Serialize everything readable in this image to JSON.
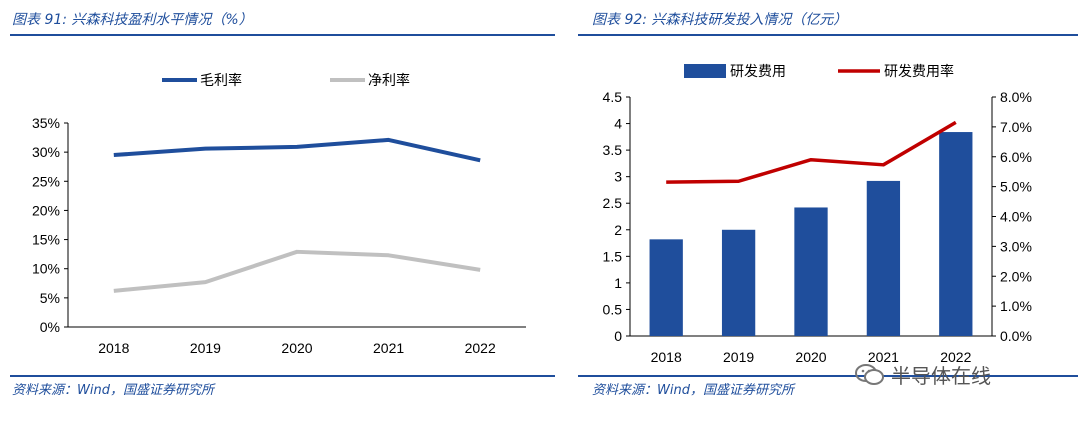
{
  "left": {
    "caption": "图表 91: 兴森科技盈利水平情况（%）",
    "source": "资料来源：Wind，国盛证券研究所"
  },
  "right": {
    "caption": "图表 92: 兴森科技研发投入情况（亿元）",
    "source": "资料来源：Wind，国盛证券研究所"
  },
  "watermark": "半导体在线",
  "colors": {
    "accent": "#1f4e9c",
    "gross": "#1f4e9c",
    "net": "#c0c0c0",
    "bar": "#1f4e9c",
    "ratio": "#c00000"
  },
  "chart_data": [
    {
      "type": "line",
      "title": "兴森科技盈利水平情况（%）",
      "categories": [
        "2018",
        "2019",
        "2020",
        "2021",
        "2022"
      ],
      "y_ticks": [
        "0%",
        "5%",
        "10%",
        "15%",
        "20%",
        "25%",
        "30%",
        "35%"
      ],
      "ylim": [
        0,
        35
      ],
      "series": [
        {
          "name": "毛利率",
          "values": [
            29.5,
            30.6,
            30.9,
            32.1,
            28.6
          ]
        },
        {
          "name": "净利率",
          "values": [
            6.2,
            7.7,
            12.9,
            12.3,
            9.8
          ]
        }
      ],
      "legend": "top"
    },
    {
      "type": "bar",
      "title": "兴森科技研发投入情况（亿元）",
      "categories": [
        "2018",
        "2019",
        "2020",
        "2021",
        "2022"
      ],
      "y_ticks": [
        "0",
        "0.5",
        "1",
        "1.5",
        "2",
        "2.5",
        "3",
        "3.5",
        "4",
        "4.5"
      ],
      "ylim": [
        0,
        4.5
      ],
      "y2_ticks": [
        "0.0%",
        "1.0%",
        "2.0%",
        "3.0%",
        "4.0%",
        "5.0%",
        "6.0%",
        "7.0%",
        "8.0%"
      ],
      "y2lim": [
        0,
        8
      ],
      "series": [
        {
          "name": "研发费用",
          "kind": "bar",
          "axis": "left",
          "values": [
            1.82,
            2.0,
            2.42,
            2.92,
            3.84
          ]
        },
        {
          "name": "研发费用率",
          "kind": "line",
          "axis": "right",
          "values": [
            5.15,
            5.18,
            5.9,
            5.73,
            7.15
          ]
        }
      ],
      "legend": "top"
    }
  ]
}
